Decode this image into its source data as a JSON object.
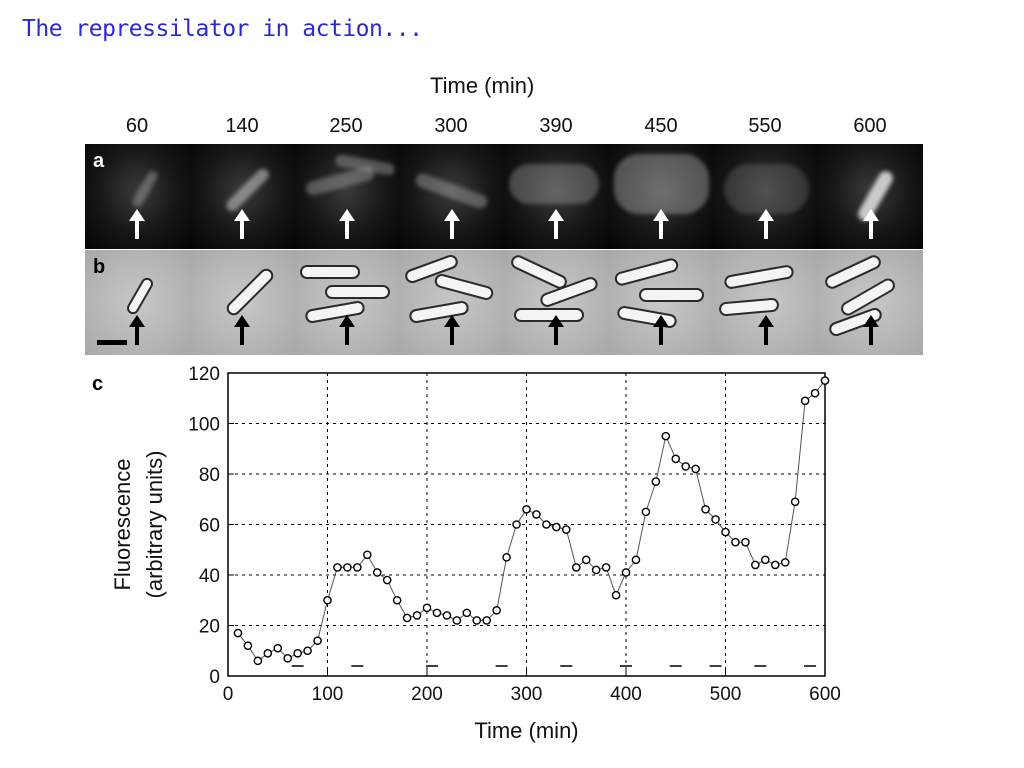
{
  "slide": {
    "title": "The repressilator in action..."
  },
  "figure": {
    "time_header": "Time (min)",
    "time_points": [
      "60",
      "140",
      "250",
      "300",
      "390",
      "450",
      "550",
      "600"
    ],
    "panel_a_label": "a",
    "panel_b_label": "b",
    "panel_c_label": "c"
  },
  "chart_data": {
    "type": "line",
    "xlabel": "Time (min)",
    "ylabel": "Fluorescence",
    "ylabel2": "(arbitrary units)",
    "xlim": [
      0,
      600
    ],
    "ylim": [
      0,
      120
    ],
    "xticks": [
      0,
      100,
      200,
      300,
      400,
      500,
      600
    ],
    "yticks": [
      0,
      20,
      40,
      60,
      80,
      100,
      120
    ],
    "grid": true,
    "series": [
      {
        "x": [
          10,
          20,
          30,
          40,
          50,
          60,
          70,
          80,
          90,
          100,
          110,
          120,
          130,
          140,
          150,
          160,
          170,
          180,
          190,
          200,
          210,
          220,
          230,
          240,
          250,
          260,
          270,
          280,
          290,
          300,
          310,
          320,
          330,
          340,
          350,
          360,
          370,
          380,
          390,
          400,
          410,
          420,
          430,
          440,
          450,
          460,
          470,
          480,
          490,
          500,
          510,
          520,
          530,
          540,
          550,
          560,
          570,
          580,
          590,
          600
        ],
        "y": [
          17,
          12,
          6,
          9,
          11,
          7,
          9,
          10,
          14,
          30,
          43,
          43,
          43,
          48,
          41,
          38,
          30,
          23,
          24,
          27,
          25,
          24,
          22,
          25,
          22,
          22,
          26,
          47,
          60,
          66,
          64,
          60,
          59,
          58,
          43,
          46,
          42,
          43,
          32,
          41,
          46,
          65,
          77,
          95,
          86,
          83,
          82,
          66,
          62,
          57,
          53,
          53,
          44,
          46,
          44,
          45,
          69,
          109,
          112,
          117
        ]
      }
    ],
    "dash_markers_x": [
      70,
      130,
      205,
      275,
      340,
      400,
      450,
      490,
      535,
      585
    ]
  }
}
